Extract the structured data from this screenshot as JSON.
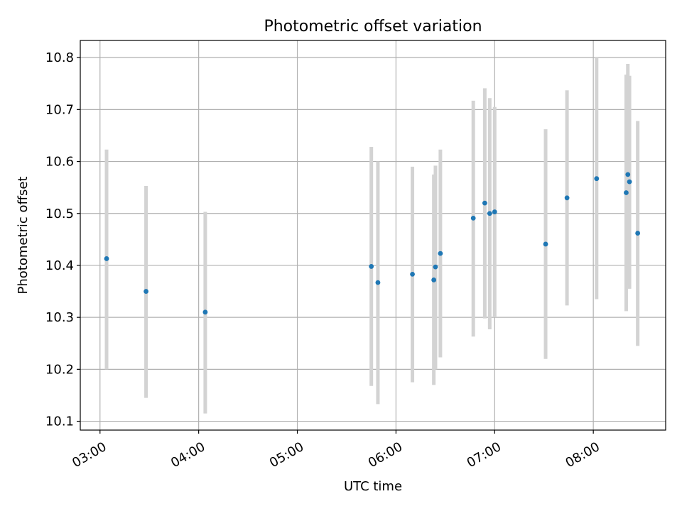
{
  "chart_data": {
    "type": "scatter",
    "title": "Photometric offset variation",
    "xlabel": "UTC time",
    "ylabel": "Photometric offset",
    "x_tick_labels": [
      "03:00",
      "04:00",
      "05:00",
      "06:00",
      "07:00",
      "08:00"
    ],
    "y_ticks": [
      10.1,
      10.2,
      10.3,
      10.4,
      10.5,
      10.6,
      10.7,
      10.8
    ],
    "xlim": [
      "02:48",
      "08:44"
    ],
    "ylim": [
      10.083,
      10.833
    ],
    "grid": true,
    "colors": {
      "points": "#1f77b4",
      "errorbars": "#d3d3d3",
      "grid": "#b0b0b0"
    },
    "points": [
      {
        "time": "03:04",
        "y": 10.413,
        "low": 10.2,
        "high": 10.623
      },
      {
        "time": "03:28",
        "y": 10.35,
        "low": 10.145,
        "high": 10.553
      },
      {
        "time": "04:04",
        "y": 10.31,
        "low": 10.115,
        "high": 10.503
      },
      {
        "time": "05:45",
        "y": 10.398,
        "low": 10.168,
        "high": 10.628
      },
      {
        "time": "05:49",
        "y": 10.367,
        "low": 10.133,
        "high": 10.6
      },
      {
        "time": "06:10",
        "y": 10.383,
        "low": 10.175,
        "high": 10.59
      },
      {
        "time": "06:23",
        "y": 10.372,
        "low": 10.17,
        "high": 10.575
      },
      {
        "time": "06:24",
        "y": 10.397,
        "low": 10.2,
        "high": 10.592
      },
      {
        "time": "06:27",
        "y": 10.423,
        "low": 10.223,
        "high": 10.623
      },
      {
        "time": "06:47",
        "y": 10.491,
        "low": 10.263,
        "high": 10.717
      },
      {
        "time": "06:54",
        "y": 10.52,
        "low": 10.298,
        "high": 10.741
      },
      {
        "time": "06:57",
        "y": 10.5,
        "low": 10.277,
        "high": 10.722
      },
      {
        "time": "07:00",
        "y": 10.503,
        "low": 10.3,
        "high": 10.705
      },
      {
        "time": "07:31",
        "y": 10.441,
        "low": 10.22,
        "high": 10.662
      },
      {
        "time": "07:44",
        "y": 10.53,
        "low": 10.323,
        "high": 10.737
      },
      {
        "time": "08:02",
        "y": 10.567,
        "low": 10.335,
        "high": 10.8
      },
      {
        "time": "08:20",
        "y": 10.54,
        "low": 10.312,
        "high": 10.767
      },
      {
        "time": "08:21",
        "y": 10.575,
        "low": 10.362,
        "high": 10.788
      },
      {
        "time": "08:22",
        "y": 10.561,
        "low": 10.355,
        "high": 10.765
      },
      {
        "time": "08:27",
        "y": 10.462,
        "low": 10.245,
        "high": 10.678
      }
    ]
  }
}
